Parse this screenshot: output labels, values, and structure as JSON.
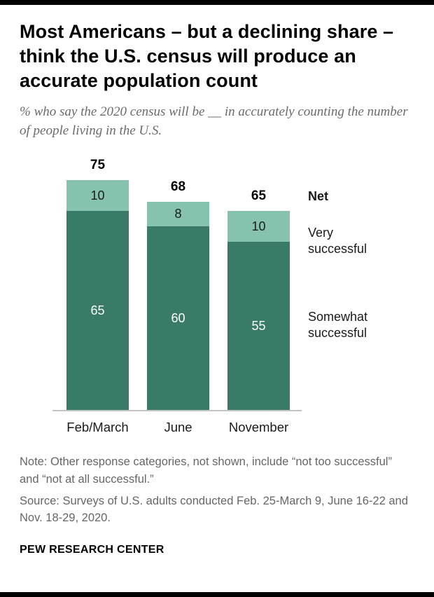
{
  "header": {
    "title": "Most Americans – but a declining share – think the U.S. census will produce an accurate population count",
    "subtitle": "% who say the 2020 census will be __ in accurately counting the number of people living in the U.S."
  },
  "chart_data": {
    "type": "bar",
    "stacked": true,
    "categories": [
      "Feb/March",
      "June",
      "November"
    ],
    "series": [
      {
        "name": "Somewhat successful",
        "color": "#3a7a69",
        "text_color": "#ffffff",
        "values": [
          65,
          60,
          55
        ]
      },
      {
        "name": "Very successful",
        "color": "#86c3ae",
        "text_color": "#1a1a1a",
        "values": [
          10,
          8,
          10
        ]
      }
    ],
    "net_values": [
      75,
      68,
      65
    ],
    "net_label": "Net",
    "ylim": [
      0,
      75
    ],
    "grid": false,
    "legend_position": "right",
    "value_labels_shown": true
  },
  "footnotes": {
    "note": "Note: Other response categories, not shown, include “not too successful” and “not at all successful.”",
    "source": "Source: Surveys of U.S. adults conducted Feb. 25-March 9, June 16-22 and Nov. 18-29, 2020."
  },
  "footer": {
    "brand": "PEW RESEARCH CENTER"
  }
}
